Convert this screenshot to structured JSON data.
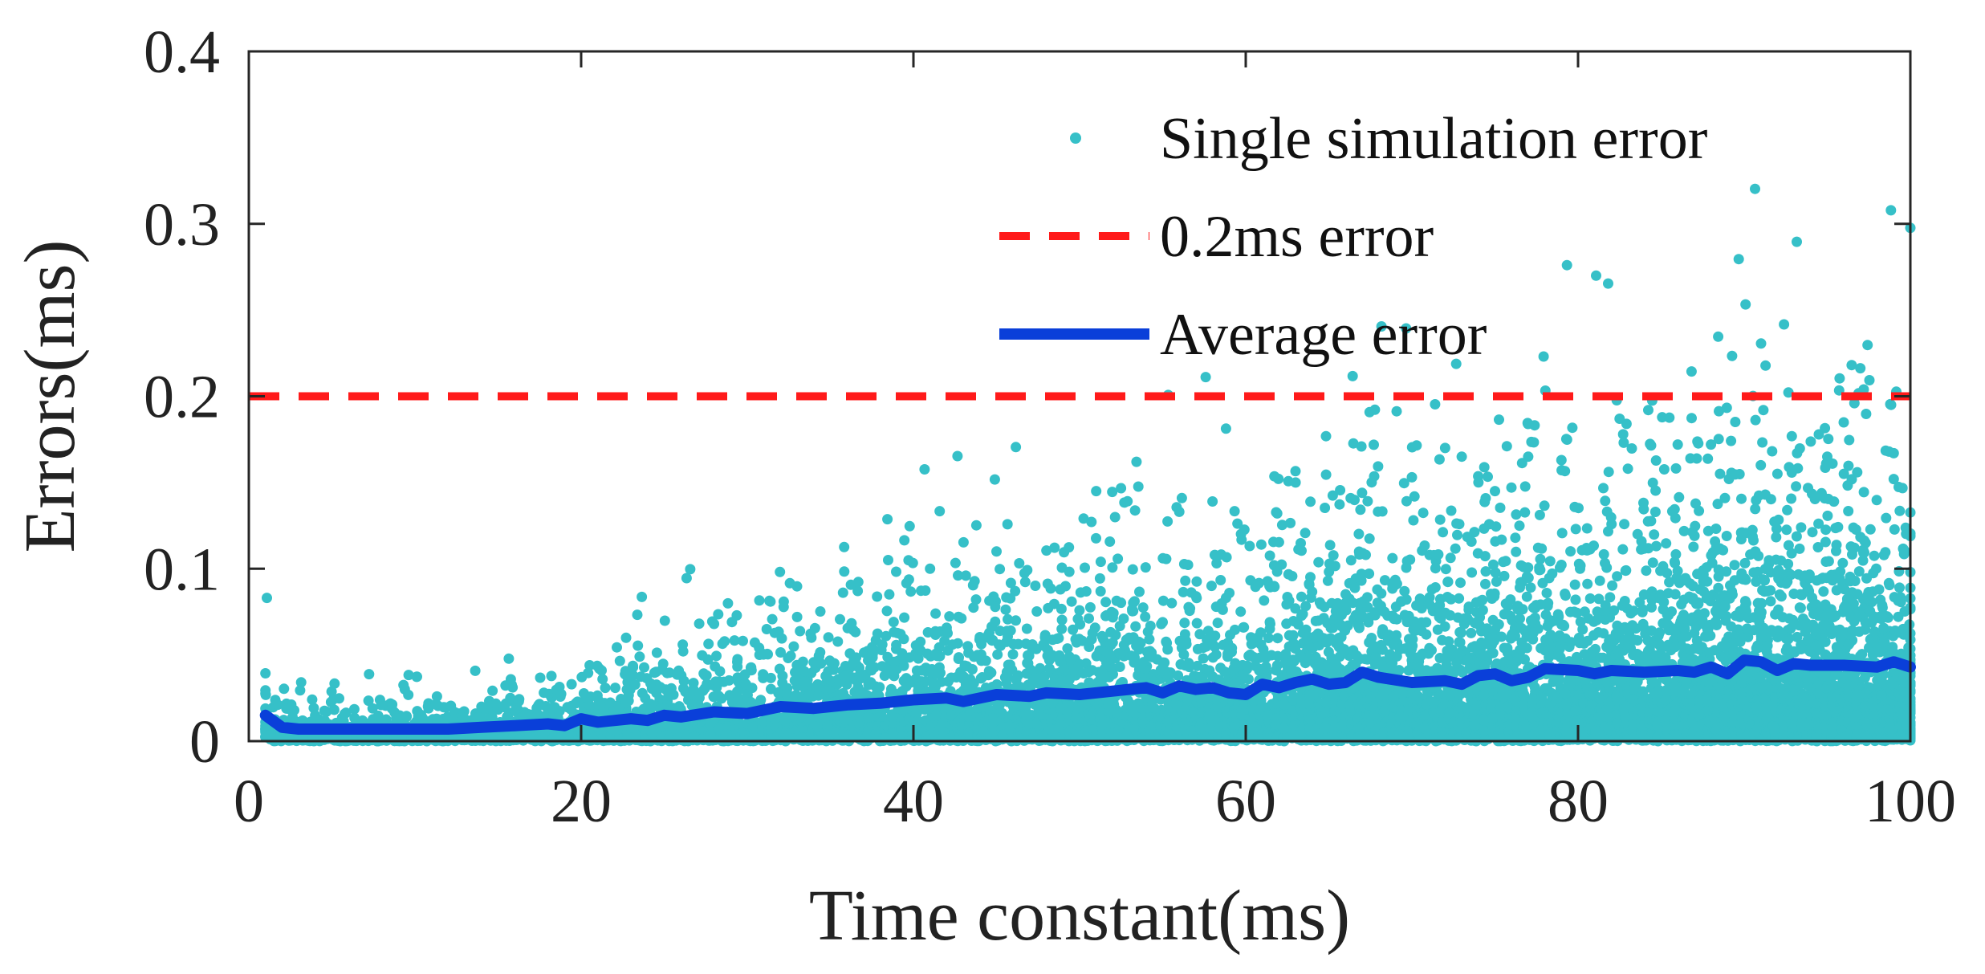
{
  "chart_data": {
    "type": "scatter",
    "title": "",
    "xlabel": "Time constant(ms)",
    "ylabel": "Errors(ms)",
    "xlim": [
      0,
      100
    ],
    "ylim": [
      0,
      0.4
    ],
    "xticks": [
      0,
      20,
      40,
      60,
      80,
      100
    ],
    "xtick_labels": [
      "0",
      "20",
      "40",
      "60",
      "80",
      "100"
    ],
    "yticks": [
      0,
      0.1,
      0.2,
      0.3,
      0.4
    ],
    "ytick_labels": [
      "0",
      "0.1",
      "0.2",
      "0.3",
      "0.4"
    ],
    "grid": false,
    "legend_position": "top-right",
    "series": [
      {
        "name": "Single simulation error",
        "kind": "scatter",
        "color": "#36c0c8",
        "description_of_distribution": "dense cloud from 0 up to a spread that grows with time constant",
        "outliers": [
          {
            "x": 51,
            "y": 0.145
          },
          {
            "x": 56,
            "y": 0.133
          },
          {
            "x": 58,
            "y": 0.139
          },
          {
            "x": 63,
            "y": 0.15
          },
          {
            "x": 67,
            "y": 0.144
          },
          {
            "x": 70,
            "y": 0.153
          },
          {
            "x": 72,
            "y": 0.17
          },
          {
            "x": 73,
            "y": 0.165
          },
          {
            "x": 75,
            "y": 0.145
          },
          {
            "x": 77,
            "y": 0.165
          },
          {
            "x": 79,
            "y": 0.163
          },
          {
            "x": 83,
            "y": 0.158
          },
          {
            "x": 86,
            "y": 0.172
          },
          {
            "x": 88,
            "y": 0.172
          },
          {
            "x": 91,
            "y": 0.16
          },
          {
            "x": 92,
            "y": 0.155
          },
          {
            "x": 95,
            "y": 0.165
          },
          {
            "x": 96,
            "y": 0.155
          },
          {
            "x": 99,
            "y": 0.167
          },
          {
            "x": 99,
            "y": 0.152
          },
          {
            "x": 45,
            "y": 0.11
          },
          {
            "x": 41,
            "y": 0.1
          },
          {
            "x": 33,
            "y": 0.072
          },
          {
            "x": 28,
            "y": 0.068
          }
        ]
      },
      {
        "name": "0.2ms error",
        "kind": "hline",
        "color": "#ff1a1a",
        "y": 0.2
      },
      {
        "name": "Average error",
        "kind": "line",
        "color": "#0a3fd9",
        "x": [
          1,
          2,
          3,
          5,
          8,
          10,
          12,
          14,
          16,
          18,
          19,
          20,
          21,
          23,
          24,
          25,
          26,
          28,
          30,
          32,
          34,
          36,
          38,
          40,
          42,
          43,
          45,
          47,
          48,
          50,
          52,
          54,
          55,
          56,
          57,
          58,
          59,
          60,
          61,
          62,
          63,
          64,
          65,
          66,
          67,
          68,
          70,
          72,
          73,
          74,
          75,
          76,
          77,
          78,
          80,
          81,
          82,
          84,
          86,
          87,
          88,
          89,
          90,
          91,
          92,
          93,
          94,
          96,
          98,
          99,
          100
        ],
        "y": [
          0.015,
          0.008,
          0.007,
          0.007,
          0.007,
          0.007,
          0.007,
          0.008,
          0.009,
          0.01,
          0.009,
          0.013,
          0.011,
          0.013,
          0.012,
          0.015,
          0.014,
          0.017,
          0.016,
          0.02,
          0.019,
          0.021,
          0.022,
          0.024,
          0.025,
          0.023,
          0.027,
          0.026,
          0.028,
          0.027,
          0.029,
          0.031,
          0.028,
          0.032,
          0.03,
          0.031,
          0.028,
          0.027,
          0.033,
          0.031,
          0.034,
          0.036,
          0.033,
          0.034,
          0.04,
          0.037,
          0.034,
          0.035,
          0.033,
          0.038,
          0.039,
          0.035,
          0.037,
          0.042,
          0.041,
          0.039,
          0.041,
          0.04,
          0.041,
          0.04,
          0.043,
          0.039,
          0.047,
          0.046,
          0.041,
          0.045,
          0.044,
          0.044,
          0.043,
          0.046,
          0.043
        ]
      }
    ]
  }
}
